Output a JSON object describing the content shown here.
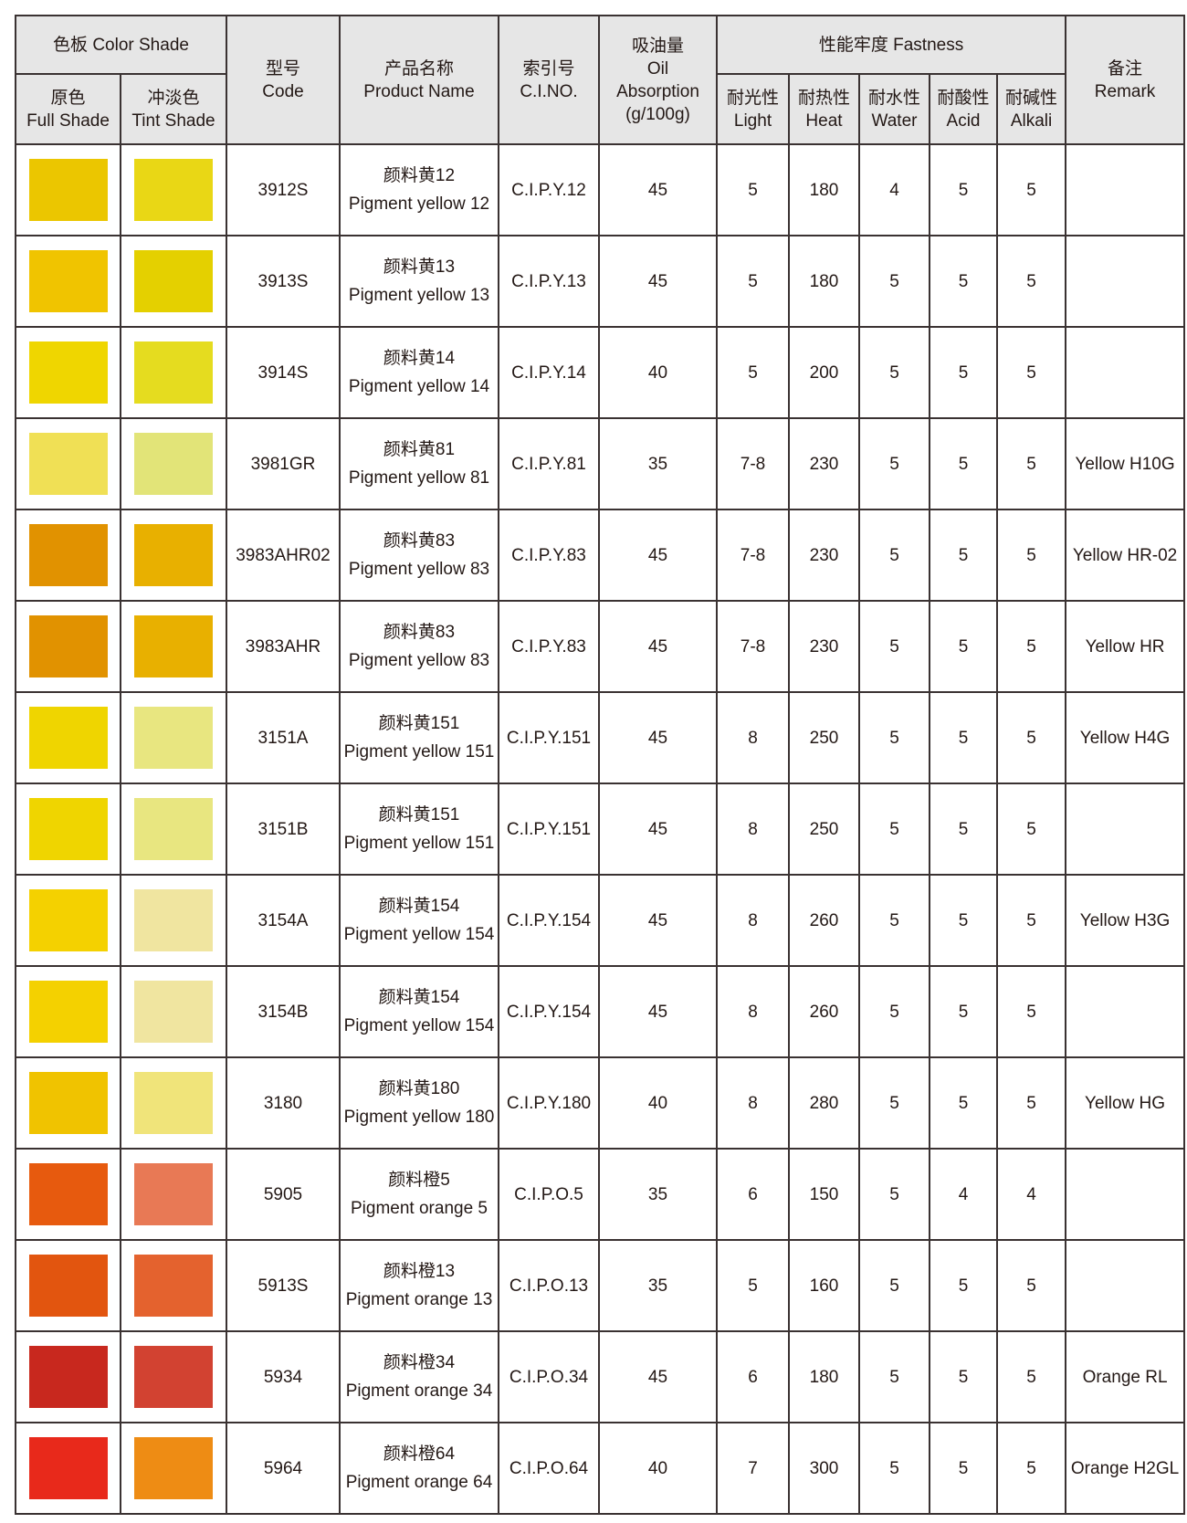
{
  "header": {
    "color_shade": "色板 Color Shade",
    "full_shade_cn": "原色",
    "full_shade_en": "Full Shade",
    "tint_shade_cn": "冲淡色",
    "tint_shade_en": "Tint Shade",
    "code_cn": "型号",
    "code_en": "Code",
    "product_cn": "产品名称",
    "product_en": "Product Name",
    "cino_cn": "索引号",
    "cino_en": "C.I.NO.",
    "oil_cn": "吸油量",
    "oil_en1": "Oil",
    "oil_en2": "Absorption",
    "oil_unit": "(g/100g)",
    "fastness": "性能牢度 Fastness",
    "light_cn": "耐光性",
    "light_en": "Light",
    "heat_cn": "耐热性",
    "heat_en": "Heat",
    "water_cn": "耐水性",
    "water_en": "Water",
    "acid_cn": "耐酸性",
    "acid_en": "Acid",
    "alkali_cn": "耐碱性",
    "alkali_en": "Alkali",
    "remark_cn": "备注",
    "remark_en": "Remark"
  },
  "rows": [
    {
      "full": "#ebc600",
      "tint": "#e9d715",
      "code": "3912S",
      "name_cn": "颜料黄12",
      "name_en": "Pigment yellow 12",
      "cino": "C.I.P.Y.12",
      "oil": "45",
      "light": "5",
      "heat": "180",
      "water": "4",
      "acid": "5",
      "alkali": "5",
      "remark": ""
    },
    {
      "full": "#f0c400",
      "tint": "#e4d000",
      "code": "3913S",
      "name_cn": "颜料黄13",
      "name_en": "Pigment yellow 13",
      "cino": "C.I.P.Y.13",
      "oil": "45",
      "light": "5",
      "heat": "180",
      "water": "5",
      "acid": "5",
      "alkali": "5",
      "remark": ""
    },
    {
      "full": "#efd600",
      "tint": "#e5dc1f",
      "code": "3914S",
      "name_cn": "颜料黄14",
      "name_en": "Pigment yellow 14",
      "cino": "C.I.P.Y.14",
      "oil": "40",
      "light": "5",
      "heat": "200",
      "water": "5",
      "acid": "5",
      "alkali": "5",
      "remark": ""
    },
    {
      "full": "#f0e055",
      "tint": "#e2e478",
      "code": "3981GR",
      "name_cn": "颜料黄81",
      "name_en": "Pigment yellow 81",
      "cino": "C.I.P.Y.81",
      "oil": "35",
      "light": "7-8",
      "heat": "230",
      "water": "5",
      "acid": "5",
      "alkali": "5",
      "remark": "Yellow H10G"
    },
    {
      "full": "#e19200",
      "tint": "#e8b000",
      "code": "3983AHR02",
      "name_cn": "颜料黄83",
      "name_en": "Pigment yellow 83",
      "cino": "C.I.P.Y.83",
      "oil": "45",
      "light": "7-8",
      "heat": "230",
      "water": "5",
      "acid": "5",
      "alkali": "5",
      "remark": "Yellow HR-02"
    },
    {
      "full": "#e19200",
      "tint": "#e8b000",
      "code": "3983AHR",
      "name_cn": "颜料黄83",
      "name_en": "Pigment yellow 83",
      "cino": "C.I.P.Y.83",
      "oil": "45",
      "light": "7-8",
      "heat": "230",
      "water": "5",
      "acid": "5",
      "alkali": "5",
      "remark": "Yellow HR"
    },
    {
      "full": "#efd500",
      "tint": "#e8e680",
      "code": "3151A",
      "name_cn": "颜料黄151",
      "name_en": "Pigment yellow 151",
      "cino": "C.I.P.Y.151",
      "oil": "45",
      "light": "8",
      "heat": "250",
      "water": "5",
      "acid": "5",
      "alkali": "5",
      "remark": "Yellow H4G"
    },
    {
      "full": "#efd500",
      "tint": "#e8e680",
      "code": "3151B",
      "name_cn": "颜料黄151",
      "name_en": "Pigment yellow 151",
      "cino": "C.I.P.Y.151",
      "oil": "45",
      "light": "8",
      "heat": "250",
      "water": "5",
      "acid": "5",
      "alkali": "5",
      "remark": ""
    },
    {
      "full": "#f4d100",
      "tint": "#f0e5a0",
      "code": "3154A",
      "name_cn": "颜料黄154",
      "name_en": "Pigment yellow 154",
      "cino": "C.I.P.Y.154",
      "oil": "45",
      "light": "8",
      "heat": "260",
      "water": "5",
      "acid": "5",
      "alkali": "5",
      "remark": "Yellow H3G"
    },
    {
      "full": "#f4d100",
      "tint": "#f0e5a0",
      "code": "3154B",
      "name_cn": "颜料黄154",
      "name_en": "Pigment yellow 154",
      "cino": "C.I.P.Y.154",
      "oil": "45",
      "light": "8",
      "heat": "260",
      "water": "5",
      "acid": "5",
      "alkali": "5",
      "remark": ""
    },
    {
      "full": "#f0c300",
      "tint": "#f0e47a",
      "code": "3180",
      "name_cn": "颜料黄180",
      "name_en": "Pigment yellow 180",
      "cino": "C.I.P.Y.180",
      "oil": "40",
      "light": "8",
      "heat": "280",
      "water": "5",
      "acid": "5",
      "alkali": "5",
      "remark": "Yellow HG"
    },
    {
      "full": "#e75a0e",
      "tint": "#e87955",
      "code": "5905",
      "name_cn": "颜料橙5",
      "name_en": "Pigment orange 5",
      "cino": "C.I.P.O.5",
      "oil": "35",
      "light": "6",
      "heat": "150",
      "water": "5",
      "acid": "4",
      "alkali": "4",
      "remark": ""
    },
    {
      "full": "#e2550f",
      "tint": "#e4622e",
      "code": "5913S",
      "name_cn": "颜料橙13",
      "name_en": "Pigment orange 13",
      "cino": "C.I.P.O.13",
      "oil": "35",
      "light": "5",
      "heat": "160",
      "water": "5",
      "acid": "5",
      "alkali": "5",
      "remark": ""
    },
    {
      "full": "#c8281e",
      "tint": "#d24231",
      "code": "5934",
      "name_cn": "颜料橙34",
      "name_en": "Pigment orange 34",
      "cino": "C.I.P.O.34",
      "oil": "45",
      "light": "6",
      "heat": "180",
      "water": "5",
      "acid": "5",
      "alkali": "5",
      "remark": "Orange RL"
    },
    {
      "full": "#e8291b",
      "tint": "#ee8c14",
      "code": "5964",
      "name_cn": "颜料橙64",
      "name_en": "Pigment orange 64",
      "cino": "C.I.P.O.64",
      "oil": "40",
      "light": "7",
      "heat": "300",
      "water": "5",
      "acid": "5",
      "alkali": "5",
      "remark": "Orange H2GL"
    }
  ]
}
